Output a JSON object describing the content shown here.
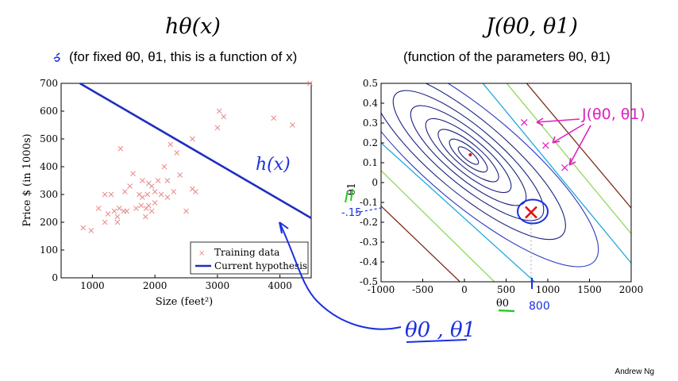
{
  "slide": {
    "left_title": "hθ(x)",
    "left_subtitle": "(for fixed θ0, θ1, this is a function of x)",
    "right_title": "J(θ0, θ1)",
    "right_subtitle": "(function of the parameters θ0, θ1)",
    "footer": "Andrew Ng"
  },
  "annotations": {
    "hx": "h(x)",
    "theta_pair": "θ0 , θ1",
    "j_label": "J(θ0, θ1)",
    "theta1_mark": "-.15",
    "theta0_mark": "800"
  },
  "colors": {
    "scatter": "#e88a8a",
    "hypothesis": "#1f2fbf",
    "ink_blue": "#1a2fe0",
    "ink_magenta": "#e020c0",
    "ink_green": "#22cc22",
    "marker": "#e01010"
  },
  "chart_data": [
    {
      "type": "scatter",
      "xlabel": "Size (feet²)",
      "ylabel": "Price $ (in 1000s)",
      "xlim": [
        500,
        4500
      ],
      "ylim": [
        0,
        700
      ],
      "xticks": [
        1000,
        2000,
        3000,
        4000
      ],
      "yticks": [
        0,
        100,
        200,
        300,
        400,
        500,
        600,
        700
      ],
      "legend": [
        "Training data",
        "Current hypothesis"
      ],
      "legend_position": "bottom-right",
      "series": [
        {
          "name": "Training data",
          "points": [
            [
              852,
              180
            ],
            [
              980,
              170
            ],
            [
              1100,
              250
            ],
            [
              1200,
              300
            ],
            [
              1250,
              230
            ],
            [
              1200,
              200
            ],
            [
              1300,
              300
            ],
            [
              1350,
              240
            ],
            [
              1400,
              220
            ],
            [
              1400,
              200
            ],
            [
              1430,
              250
            ],
            [
              1450,
              465
            ],
            [
              1500,
              240
            ],
            [
              1520,
              310
            ],
            [
              1550,
              240
            ],
            [
              1600,
              330
            ],
            [
              1650,
              375
            ],
            [
              1700,
              250
            ],
            [
              1750,
              300
            ],
            [
              1780,
              260
            ],
            [
              1800,
              290
            ],
            [
              1800,
              350
            ],
            [
              1850,
              220
            ],
            [
              1860,
              250
            ],
            [
              1880,
              300
            ],
            [
              1900,
              340
            ],
            [
              1900,
              260
            ],
            [
              1950,
              240
            ],
            [
              1950,
              330
            ],
            [
              2000,
              310
            ],
            [
              2000,
              270
            ],
            [
              2050,
              350
            ],
            [
              2100,
              300
            ],
            [
              2150,
              400
            ],
            [
              2200,
              350
            ],
            [
              2200,
              290
            ],
            [
              2250,
              480
            ],
            [
              2300,
              310
            ],
            [
              2350,
              450
            ],
            [
              2400,
              370
            ],
            [
              2500,
              240
            ],
            [
              2600,
              320
            ],
            [
              2600,
              500
            ],
            [
              2650,
              310
            ],
            [
              3000,
              540
            ],
            [
              3030,
              600
            ],
            [
              3100,
              580
            ],
            [
              3900,
              575
            ],
            [
              4200,
              550
            ],
            [
              4480,
              700
            ]
          ]
        },
        {
          "name": "Current hypothesis",
          "line": [
            [
              800,
              700
            ],
            [
              4500,
              215
            ]
          ]
        }
      ]
    },
    {
      "type": "contour",
      "xlabel": "θ0",
      "ylabel": "θ1",
      "xlim": [
        -1000,
        2000
      ],
      "ylim": [
        -0.5,
        0.5
      ],
      "xticks": [
        -1000,
        -500,
        0,
        500,
        1000,
        1500,
        2000
      ],
      "yticks": [
        -0.5,
        -0.4,
        -0.3,
        -0.2,
        -0.1,
        0,
        0.1,
        0.2,
        0.3,
        0.4,
        0.5
      ],
      "minimum": [
        70,
        0.14
      ],
      "selected_point": [
        800,
        -0.15
      ]
    }
  ]
}
